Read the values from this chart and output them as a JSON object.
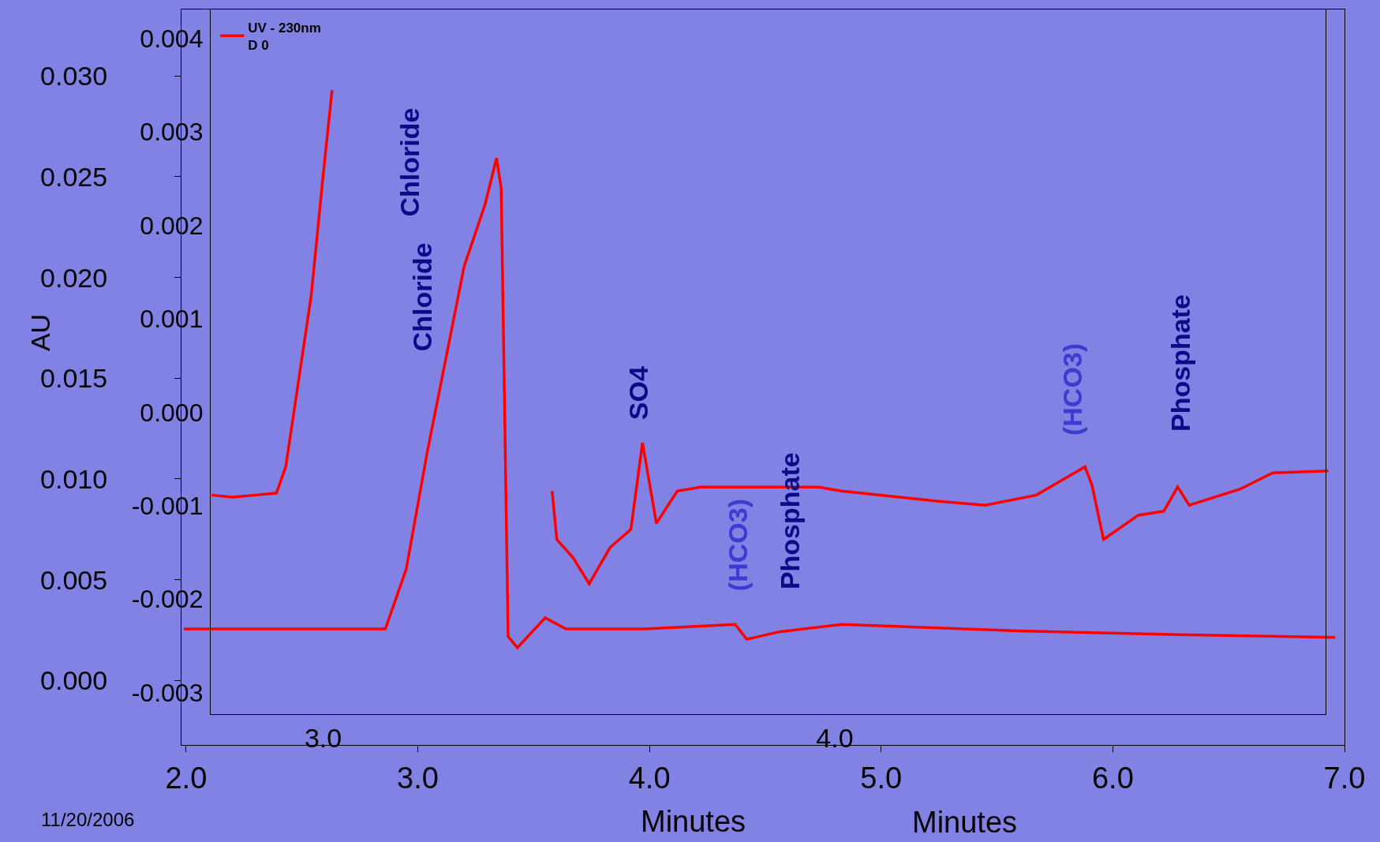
{
  "chart_data": {
    "type": "line",
    "xlabel": "Minutes",
    "x2label": "Minutes",
    "ylabel": "AU",
    "xlim": [
      1.98,
      7.0
    ],
    "xticks": [
      {
        "value": 2,
        "label": "2.0"
      },
      {
        "value": 3,
        "label": "3.0"
      },
      {
        "value": 4,
        "label": "4.0"
      },
      {
        "value": 5,
        "label": "5.0"
      },
      {
        "value": 6,
        "label": "6.0"
      },
      {
        "value": 7,
        "label": "7.0"
      }
    ],
    "ylim": [
      -0.0032,
      0.0333
    ],
    "yticks": [
      {
        "value": 0,
        "label": "0.000"
      },
      {
        "value": 0.005,
        "label": "0.005"
      },
      {
        "value": 0.01,
        "label": "0.010"
      },
      {
        "value": 0.015,
        "label": "0.015"
      },
      {
        "value": 0.02,
        "label": "0.020"
      },
      {
        "value": 0.025,
        "label": "0.025"
      },
      {
        "value": 0.03,
        "label": "0.030"
      }
    ],
    "x2lim": [
      2.78,
      4.96
    ],
    "x2ticks": [
      {
        "value": 3,
        "label": "3.0"
      },
      {
        "value": 4,
        "label": "4.0"
      }
    ],
    "y2lim": [
      -0.00323,
      0.00431
    ],
    "y2ticks": [
      {
        "value": -0.003,
        "label": "-0.003"
      },
      {
        "value": -0.002,
        "label": "-0.002"
      },
      {
        "value": -0.001,
        "label": "-0.001"
      },
      {
        "value": 0,
        "label": "0.000"
      },
      {
        "value": 0.001,
        "label": "0.001"
      },
      {
        "value": 0.002,
        "label": "0.002"
      },
      {
        "value": 0.003,
        "label": "0.003"
      },
      {
        "value": 0.004,
        "label": "0.004"
      }
    ],
    "grid": false,
    "legend": "top left",
    "marker": "none",
    "line_style": "solid",
    "series": [
      {
        "name": "UV - 230nm\nD 0",
        "color": "#ff0000",
        "x": [
          2.11,
          2.2,
          2.3,
          2.39,
          2.43,
          2.5,
          2.54,
          2.59,
          2.63,
          2.68,
          3.0,
          3.55,
          3.58,
          3.6,
          3.67,
          3.74,
          3.83,
          3.92,
          3.97,
          4.03,
          4.12,
          4.22,
          4.73,
          4.83,
          5.24,
          5.45,
          5.67,
          5.82,
          5.88,
          5.91,
          5.96,
          6.11,
          6.22,
          6.28,
          6.33,
          6.55,
          6.69,
          6.93
        ],
        "values": [
          0.0092,
          0.0091,
          0.0092,
          0.0093,
          0.0106,
          0.016,
          0.0191,
          0.0249,
          0.0293,
          null,
          null,
          null,
          0.0094,
          0.007,
          0.0061,
          0.0048,
          0.0066,
          0.0075,
          0.0118,
          0.0078,
          0.0094,
          0.0096,
          0.0096,
          0.0094,
          0.0089,
          0.0087,
          0.0092,
          0.0102,
          0.0106,
          0.0097,
          0.007,
          0.0082,
          0.0084,
          0.0096,
          0.0087,
          0.0095,
          0.0103,
          0.0104
        ]
      },
      {
        "axis": "y2",
        "color": "#ff0000",
        "x": [
          1.99,
          2.61,
          2.86,
          2.95,
          3.04,
          3.2,
          3.29,
          3.34,
          3.36,
          3.39,
          3.43,
          3.55,
          3.64,
          3.98,
          4.37,
          4.42,
          4.56,
          4.83,
          5.59,
          6.28,
          6.96
        ],
        "values": [
          -0.00232,
          -0.00232,
          -0.00232,
          -0.00168,
          -0.00044,
          0.00156,
          0.00222,
          0.00272,
          0.0024,
          -0.0024,
          -0.00252,
          -0.0022,
          -0.00232,
          -0.00232,
          -0.00227,
          -0.00243,
          -0.00235,
          -0.00227,
          -0.00234,
          -0.00238,
          -0.00241
        ]
      }
    ],
    "annotations": [
      "Chloride",
      "Chloride",
      "SO4",
      "(HCO3)",
      "Phosphate",
      "(HCO3)",
      "Phosphate",
      "11/20/2006"
    ]
  }
}
